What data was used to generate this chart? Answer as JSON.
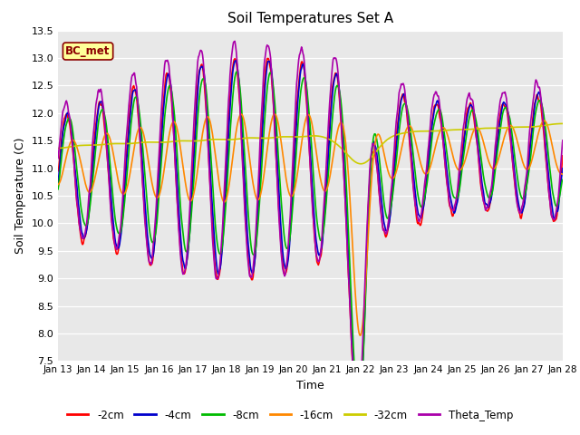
{
  "title": "Soil Temperatures Set A",
  "xlabel": "Time",
  "ylabel": "Soil Temperature (C)",
  "ylim": [
    7.5,
    13.5
  ],
  "yticks": [
    7.5,
    8.0,
    8.5,
    9.0,
    9.5,
    10.0,
    10.5,
    11.0,
    11.5,
    12.0,
    12.5,
    13.0,
    13.5
  ],
  "bg_color": "#ffffff",
  "plot_bg_color": "#e8e8e8",
  "annotation_text": "BC_met",
  "annotation_bg": "#ffff99",
  "annotation_border": "#8B0000",
  "lines": [
    {
      "label": "-2cm",
      "color": "#ff0000",
      "lw": 1.2
    },
    {
      "label": "-4cm",
      "color": "#0000cc",
      "lw": 1.2
    },
    {
      "label": "-8cm",
      "color": "#00bb00",
      "lw": 1.2
    },
    {
      "label": "-16cm",
      "color": "#ff8800",
      "lw": 1.2
    },
    {
      "label": "-32cm",
      "color": "#cccc00",
      "lw": 1.2
    },
    {
      "label": "Theta_Temp",
      "color": "#aa00aa",
      "lw": 1.2
    }
  ],
  "xtick_labels": [
    "Jan 13",
    "Jan 14",
    "Jan 15",
    "Jan 16",
    "Jan 17",
    "Jan 18",
    "Jan 19",
    "Jan 20",
    "Jan 21",
    "Jan 22",
    "Jan 23",
    "Jan 24",
    "Jan 25",
    "Jan 26",
    "Jan 27",
    "Jan 28"
  ],
  "legend_ncol": 6
}
